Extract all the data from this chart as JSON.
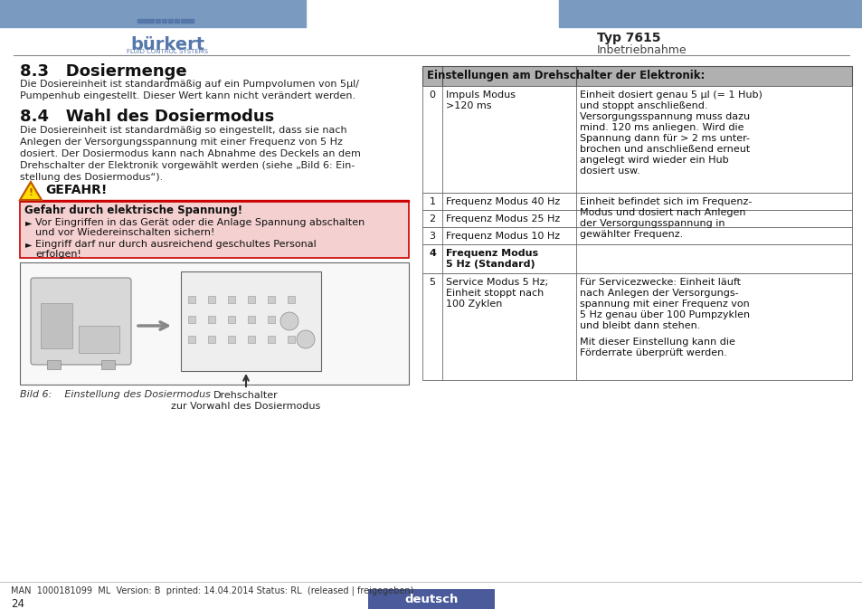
{
  "page_bg": "#ffffff",
  "header_bar_color": "#7a9bbf",
  "brand": "bürkert",
  "brand_sub": "FLUID CONTROL SYSTEMS",
  "typ_label": "Typ 7615",
  "section_label": "Inbetriebnahme",
  "section83_title": "8.3   Dosiermenge",
  "section83_body": "Die Dosiereinheit ist standardmäßig auf ein Pumpvolumen von 5µl/\nPumpenhub eingestellt. Dieser Wert kann nicht verändert werden.",
  "section84_title": "8.4   Wahl des Dosiermodus",
  "section84_body": "Die Dosiereinheit ist standardmäßig so eingestellt, dass sie nach\nAnlegen der Versorgungsspannung mit einer Frequenz von 5 Hz\ndosiert. Der Dosiermodus kann nach Abnahme des Deckels an dem\nDrehschalter der Elektronik vorgewählt werden (siehe „Bild 6: Ein-\nstellung des Dosiermodus“).",
  "danger_title": "GEFAHR!",
  "danger_box_title": "Gefahr durch elektrische Spannung!",
  "danger_bullet1a": "Vor Eingriffen in das Gerät oder die Anlage Spannung abschalten",
  "danger_bullet1b": "und vor Wiedereinschalten sichern!",
  "danger_bullet2a": "Eingriff darf nur durch ausreichend geschultes Personal",
  "danger_bullet2b": "erfolgen!",
  "fig_caption": "Bild 6:    Einstellung des Dosiermodus",
  "drehschalter_line1": "Drehschalter",
  "drehschalter_line2": "zur Vorwahl des Dosiermodus",
  "footer_left": "MAN  1000181099  ML  Version: B  printed: 14.04.2014 Status: RL  (released | freigegeben)",
  "footer_page": "24",
  "footer_lang": "deutsch",
  "footer_lang_bg": "#4a5a9a",
  "table_header": "Einstellungen am Drehschalter der Elektronik:",
  "table_header_bg": "#b0b0b0",
  "table_rows": [
    {
      "id": "0",
      "col2": "Impuls Modus\n>120 ms",
      "col3": "Einheit dosiert genau 5 µl (= 1 Hub)\nund stoppt anschließend.\nVersorgungsspannung muss dazu\nmind. 120 ms anliegen. Wird die\nSpannung dann für > 2 ms unter-\nbrochen und anschließend erneut\nangelegt wird wieder ein Hub\ndosiert usw.",
      "bold": false
    },
    {
      "id": "1",
      "col2": "Frequenz Modus 40 Hz",
      "col3": "Einheit befindet sich im Frequenz-\nModus und dosiert nach Anlegen\nder Versorgungsspannung in\ngewählter Frequenz.",
      "bold": false
    },
    {
      "id": "2",
      "col2": "Frequenz Modus 25 Hz",
      "col3": "",
      "bold": false
    },
    {
      "id": "3",
      "col2": "Frequenz Modus 10 Hz",
      "col3": "",
      "bold": false
    },
    {
      "id": "4",
      "col2": "Frequenz Modus\n5 Hz (Standard)",
      "col3": "",
      "bold": true
    },
    {
      "id": "5",
      "col2": "Service Modus 5 Hz;\nEinheit stoppt nach\n100 Zyklen",
      "col3": "Für Servicezwecke: Einheit läuft\nnach Anlegen der Versorgungs-\nspannung mit einer Frequenz von\n5 Hz genau über 100 Pumpzyklen\nund bleibt dann stehen.\n \nMit dieser Einstellung kann die\nFörderrate überprüft werden.",
      "bold": false
    }
  ],
  "danger_border_color": "#cc0000",
  "danger_fill_color": "#f5d0d0"
}
